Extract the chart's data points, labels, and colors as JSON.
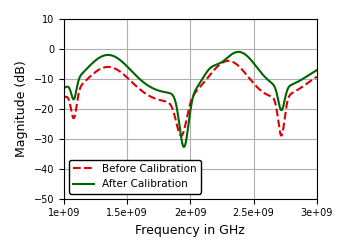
{
  "freq_start": 1000000000.0,
  "freq_end": 3000000000.0,
  "xlabel": "Frequency in GHz",
  "ylabel": "Magnitude (dB)",
  "ylim": [
    -50,
    10
  ],
  "xlim": [
    1000000000.0,
    3000000000.0
  ],
  "xticks": [
    1000000000.0,
    1500000000.0,
    2000000000.0,
    2500000000.0,
    3000000000.0
  ],
  "xtick_labels": [
    "1e+09",
    "1.5e+09",
    "2e+09",
    "2.5e+09",
    "3e+09"
  ],
  "yticks": [
    10,
    0,
    -10,
    -20,
    -30,
    -40,
    -50
  ],
  "grid": true,
  "legend_entries": [
    "Before Calibration",
    "After Calibration"
  ],
  "before_color": "#dd0000",
  "after_color": "#006400",
  "before_style": "--",
  "after_style": "-",
  "linewidth": 1.5
}
